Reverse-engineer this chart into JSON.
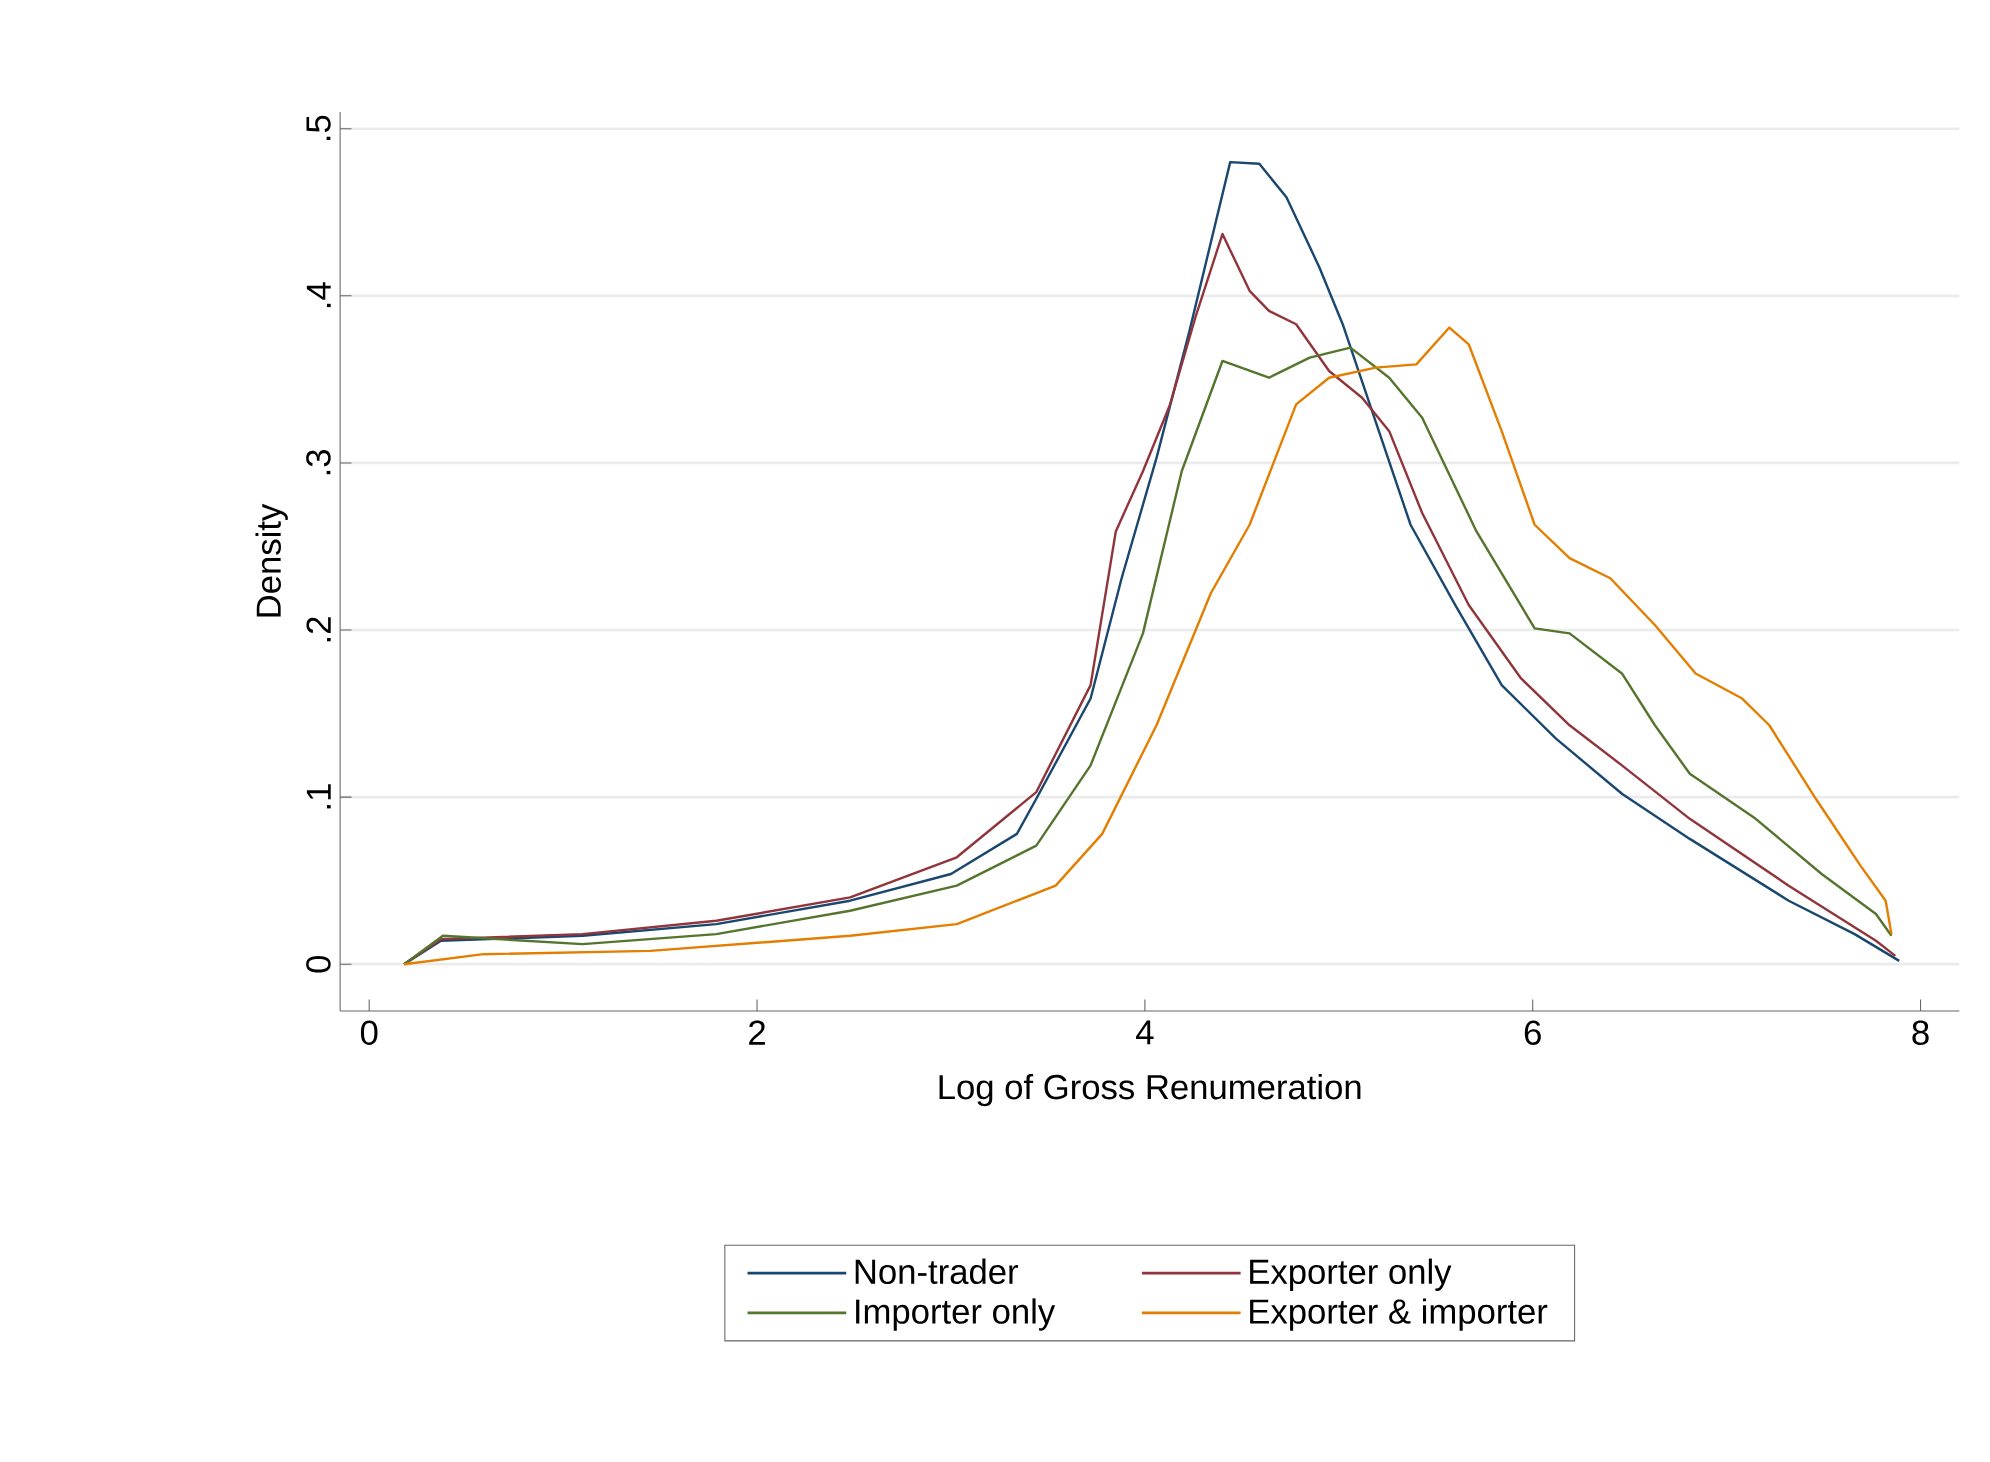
{
  "chart_data": {
    "type": "line",
    "xlabel": "Log of Gross Renumeration",
    "ylabel": "Density",
    "xlim": [
      -0.15,
      8.2
    ],
    "ylim": [
      -0.028,
      0.51
    ],
    "xticks": [
      0,
      2,
      4,
      6,
      8
    ],
    "yticks": [
      {
        "value": 0,
        "label": "0"
      },
      {
        "value": 0.1,
        "label": ".1"
      },
      {
        "value": 0.2,
        "label": ".2"
      },
      {
        "value": 0.3,
        "label": ".3"
      },
      {
        "value": 0.4,
        "label": ".4"
      },
      {
        "value": 0.5,
        "label": ".5"
      }
    ],
    "grid": "y",
    "legend": "bottom",
    "series": [
      {
        "name": "Non-trader",
        "color": "#1a476f",
        "x": [
          0.18,
          0.37,
          1.1,
          1.79,
          2.48,
          3.0,
          3.34,
          3.44,
          3.72,
          3.88,
          4.06,
          4.23,
          4.44,
          4.59,
          4.73,
          4.9,
          5.02,
          5.16,
          5.37,
          5.6,
          5.84,
          6.12,
          6.46,
          6.81,
          7.32,
          7.66,
          7.89
        ],
        "values": [
          0,
          0.014,
          0.017,
          0.024,
          0.038,
          0.054,
          0.078,
          0.099,
          0.159,
          0.231,
          0.303,
          0.379,
          0.48,
          0.479,
          0.459,
          0.417,
          0.383,
          0.335,
          0.263,
          0.215,
          0.167,
          0.135,
          0.102,
          0.075,
          0.038,
          0.018,
          0.002
        ]
      },
      {
        "name": "Exporter only",
        "color": "#90353b",
        "x": [
          0.18,
          0.37,
          1.1,
          1.79,
          2.48,
          3.03,
          3.44,
          3.72,
          3.85,
          3.99,
          4.13,
          4.26,
          4.4,
          4.54,
          4.64,
          4.78,
          4.95,
          5.12,
          5.26,
          5.43,
          5.67,
          5.94,
          6.19,
          6.46,
          6.81,
          7.32,
          7.77,
          7.87
        ],
        "values": [
          0,
          0.015,
          0.018,
          0.026,
          0.04,
          0.064,
          0.103,
          0.167,
          0.259,
          0.295,
          0.335,
          0.387,
          0.437,
          0.403,
          0.391,
          0.383,
          0.355,
          0.339,
          0.319,
          0.27,
          0.215,
          0.171,
          0.143,
          0.119,
          0.087,
          0.047,
          0.014,
          0.005
        ]
      },
      {
        "name": "Importer only",
        "color": "#55752f",
        "x": [
          0.18,
          0.38,
          1.1,
          1.79,
          2.48,
          3.03,
          3.44,
          3.72,
          3.99,
          4.19,
          4.4,
          4.64,
          4.85,
          5.06,
          5.26,
          5.43,
          5.71,
          6.01,
          6.19,
          6.46,
          6.63,
          6.81,
          7.15,
          7.49,
          7.77,
          7.85
        ],
        "values": [
          0,
          0.017,
          0.012,
          0.018,
          0.032,
          0.047,
          0.071,
          0.119,
          0.198,
          0.295,
          0.361,
          0.351,
          0.363,
          0.369,
          0.351,
          0.327,
          0.259,
          0.201,
          0.198,
          0.174,
          0.143,
          0.114,
          0.087,
          0.054,
          0.03,
          0.017
        ]
      },
      {
        "name": "Exporter & importer",
        "color": "#e37e00",
        "x": [
          0.18,
          0.59,
          1.45,
          2.48,
          3.03,
          3.54,
          3.78,
          4.06,
          4.34,
          4.54,
          4.78,
          4.95,
          5.19,
          5.4,
          5.57,
          5.67,
          5.84,
          6.01,
          6.19,
          6.4,
          6.63,
          6.84,
          7.08,
          7.22,
          7.46,
          7.69,
          7.82,
          7.85
        ],
        "values": [
          0,
          0.006,
          0.008,
          0.017,
          0.024,
          0.047,
          0.078,
          0.143,
          0.222,
          0.263,
          0.335,
          0.351,
          0.357,
          0.359,
          0.381,
          0.371,
          0.319,
          0.263,
          0.243,
          0.231,
          0.203,
          0.174,
          0.159,
          0.143,
          0.099,
          0.059,
          0.038,
          0.018
        ]
      }
    ]
  }
}
